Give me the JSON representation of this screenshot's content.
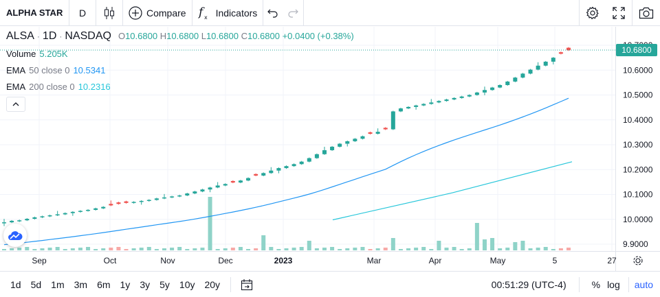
{
  "toolbar": {
    "symbol": "ALPHA STAR",
    "interval": "D",
    "compare_label": "Compare",
    "indicators_label": "Indicators",
    "icons": [
      "bar-style-icon",
      "compare-plus-icon",
      "fx-icon",
      "undo-icon",
      "redo-icon",
      "settings-gear-icon",
      "fullscreen-icon",
      "camera-icon"
    ]
  },
  "legend": {
    "symbol": "ALSA",
    "interval": "1D",
    "exchange": "NASDAQ",
    "o_label": "O",
    "o": "10.6800",
    "h_label": "H",
    "h": "10.6800",
    "l_label": "L",
    "l": "10.6800",
    "c_label": "C",
    "c": "10.6800",
    "change": "+0.0400 (+0.38%)",
    "volume_name": "Volume",
    "volume_value": "5.205K",
    "ema50_name": "EMA",
    "ema50_params": "50 close 0",
    "ema50_value": "10.5341",
    "ema200_name": "EMA",
    "ema200_params": "200 close 0",
    "ema200_value": "10.2316"
  },
  "last_price_label": "10.6800",
  "bottom": {
    "ranges": [
      "1d",
      "5d",
      "1m",
      "3m",
      "6m",
      "1y",
      "3y",
      "5y",
      "10y",
      "20y"
    ],
    "clock": "00:51:29 (UTC-4)",
    "percent": "%",
    "log": "log",
    "auto": "auto"
  },
  "colors": {
    "up": "#26a69a",
    "down": "#ef5350",
    "ema50": "#2196f3",
    "ema200": "#26c6da",
    "vol_up": "#8fd3c8",
    "vol_down": "#f7a9a7",
    "accent": "#2962ff"
  },
  "chart_data": {
    "type": "candlestick",
    "y_axis_ticks": [
      "10.7000",
      "10.6000",
      "10.5000",
      "10.4000",
      "10.3000",
      "10.2000",
      "10.1000",
      "10.0000",
      "9.9000"
    ],
    "ylim": [
      9.88,
      10.72
    ],
    "x_axis_ticks": [
      "Sep",
      "Oct",
      "Nov",
      "Dec",
      "2023",
      "Mar",
      "Apr",
      "May",
      "5",
      "27"
    ],
    "close_series": [
      9.988,
      9.994,
      9.996,
      10.002,
      10.008,
      10.012,
      10.016,
      10.02,
      10.025,
      10.03,
      10.034,
      10.038,
      10.044,
      10.05,
      10.056,
      10.062,
      10.066,
      10.07,
      10.074,
      10.078,
      10.084,
      10.088,
      10.092,
      10.096,
      10.104,
      10.112,
      10.12,
      10.128,
      10.136,
      10.142,
      10.148,
      10.156,
      10.166,
      10.176,
      10.186,
      10.196,
      10.206,
      10.214,
      10.222,
      10.232,
      10.246,
      10.262,
      10.278,
      10.292,
      10.304,
      10.314,
      10.324,
      10.334,
      10.344,
      10.352,
      10.362,
      10.434,
      10.446,
      10.452,
      10.458,
      10.464,
      10.47,
      10.476,
      10.482,
      10.488,
      10.494,
      10.5,
      10.51,
      10.52,
      10.53,
      10.54,
      10.554,
      10.57,
      10.586,
      10.602,
      10.618,
      10.634,
      10.65,
      10.666,
      10.68
    ],
    "ema50": {
      "name": "EMA 50 close 0",
      "last": 10.5341
    },
    "ema200": {
      "name": "EMA 200 close 0",
      "last": 10.2316
    },
    "volume_last": "5.205K",
    "grid": true
  }
}
